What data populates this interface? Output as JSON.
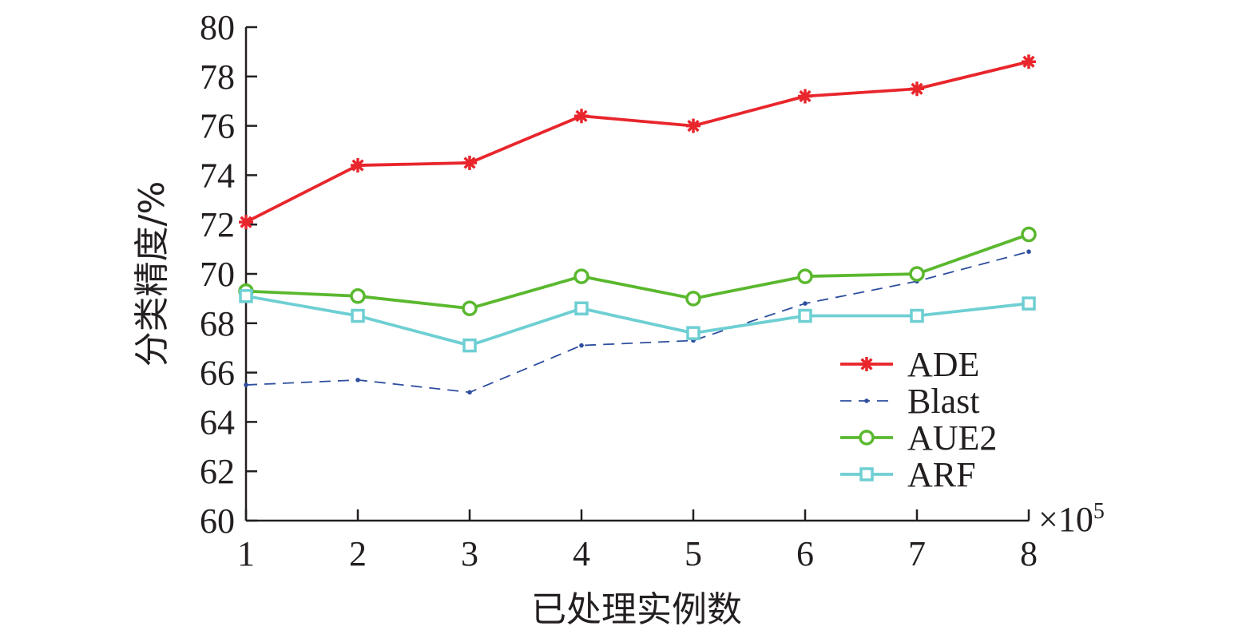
{
  "chart_data": {
    "type": "line",
    "x": [
      1,
      2,
      3,
      4,
      5,
      6,
      7,
      8
    ],
    "x_multiplier": "×10",
    "x_multiplier_exp": "5",
    "xlabel": "已处理实例数",
    "ylabel": "分类精度/%",
    "xlim": [
      1,
      8
    ],
    "ylim": [
      60,
      80
    ],
    "yticks": [
      60,
      62,
      64,
      66,
      68,
      70,
      72,
      74,
      76,
      78,
      80
    ],
    "grid": false,
    "legend_position": "right",
    "series": [
      {
        "name": "ADE",
        "color": "#e8262c",
        "marker": "asterisk",
        "dash": "solid",
        "values": [
          72.1,
          74.4,
          74.5,
          76.4,
          76.0,
          77.2,
          77.5,
          78.6
        ]
      },
      {
        "name": "Blast",
        "color": "#2e4f9e",
        "marker": "dot",
        "dash": "dashed",
        "values": [
          65.5,
          65.7,
          65.2,
          67.1,
          67.3,
          68.8,
          69.7,
          70.9
        ]
      },
      {
        "name": "AUE2",
        "color": "#5ab82e",
        "marker": "circle",
        "dash": "solid",
        "values": [
          69.3,
          69.1,
          68.6,
          69.9,
          69.0,
          69.9,
          70.0,
          71.6
        ]
      },
      {
        "name": "ARF",
        "color": "#6ecfd3",
        "marker": "square",
        "dash": "solid",
        "values": [
          69.1,
          68.3,
          67.1,
          68.6,
          67.6,
          68.3,
          68.3,
          68.8
        ]
      }
    ]
  }
}
